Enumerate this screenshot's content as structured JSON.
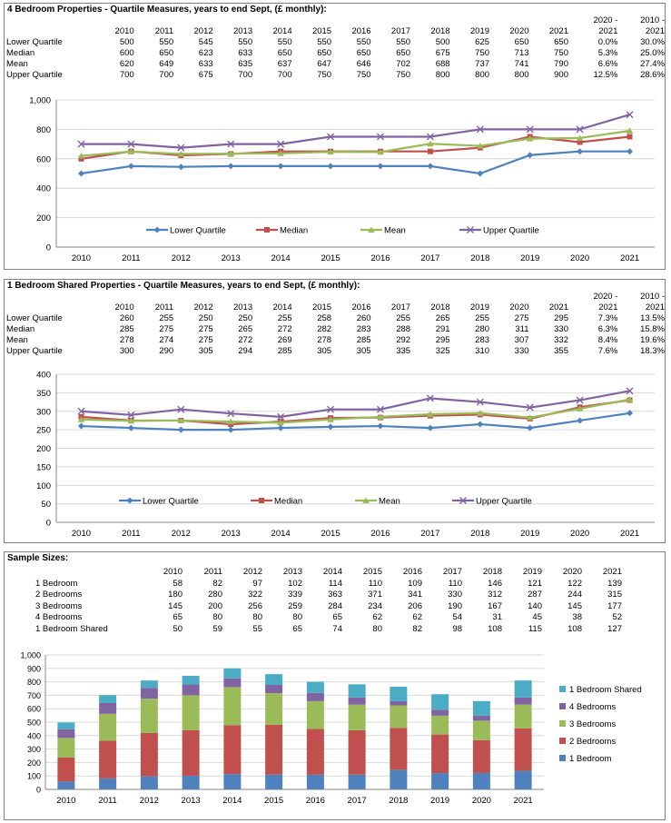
{
  "colors": {
    "lower": "#4f81bd",
    "median": "#c0504d",
    "mean": "#9bbb59",
    "upper": "#8064a2",
    "shared": "#4bacc6",
    "grid": "#d9d9d9",
    "axis": "#868686"
  },
  "years": [
    "2010",
    "2011",
    "2012",
    "2013",
    "2014",
    "2015",
    "2016",
    "2017",
    "2018",
    "2019",
    "2020",
    "2021"
  ],
  "change_headers": {
    "c1_line1": "2020 -",
    "c1_line2": "2021",
    "c2_line1": "2010 -",
    "c2_line2": "2021"
  },
  "panel1": {
    "title": "4 Bedroom Properties - Quartile Measures, years to end Sept, (£ monthly):",
    "rows": [
      {
        "label": "Lower Quartile",
        "values": [
          "500",
          "550",
          "545",
          "550",
          "550",
          "550",
          "550",
          "550",
          "500",
          "625",
          "650",
          "650"
        ],
        "c1": "0.0%",
        "c2": "30.0%"
      },
      {
        "label": "Median",
        "values": [
          "600",
          "650",
          "623",
          "633",
          "650",
          "650",
          "650",
          "650",
          "675",
          "750",
          "713",
          "750"
        ],
        "c1": "5.3%",
        "c2": "25.0%"
      },
      {
        "label": "Mean",
        "values": [
          "620",
          "649",
          "633",
          "635",
          "637",
          "647",
          "646",
          "702",
          "688",
          "737",
          "741",
          "790"
        ],
        "c1": "6.6%",
        "c2": "27.4%"
      },
      {
        "label": "Upper Quartile",
        "values": [
          "700",
          "700",
          "675",
          "700",
          "700",
          "750",
          "750",
          "750",
          "800",
          "800",
          "800",
          "900"
        ],
        "c1": "12.5%",
        "c2": "28.6%"
      }
    ]
  },
  "panel2": {
    "title": "1 Bedroom Shared Properties - Quartile Measures, years to end Sept, (£ monthly):",
    "rows": [
      {
        "label": "Lower Quartile",
        "values": [
          "260",
          "255",
          "250",
          "250",
          "255",
          "258",
          "260",
          "255",
          "265",
          "255",
          "275",
          "295"
        ],
        "c1": "7.3%",
        "c2": "13.5%"
      },
      {
        "label": "Median",
        "values": [
          "285",
          "275",
          "275",
          "265",
          "272",
          "282",
          "283",
          "288",
          "291",
          "280",
          "311",
          "330"
        ],
        "c1": "6.3%",
        "c2": "15.8%"
      },
      {
        "label": "Mean",
        "values": [
          "278",
          "274",
          "275",
          "272",
          "269",
          "278",
          "285",
          "292",
          "295",
          "283",
          "307",
          "332"
        ],
        "c1": "8.4%",
        "c2": "19.6%"
      },
      {
        "label": "Upper Quartile",
        "values": [
          "300",
          "290",
          "305",
          "294",
          "285",
          "305",
          "305",
          "335",
          "325",
          "310",
          "330",
          "355"
        ],
        "c1": "7.6%",
        "c2": "18.3%"
      }
    ]
  },
  "panel3": {
    "title": "Sample Sizes:",
    "rows": [
      {
        "label": "1 Bedroom",
        "values": [
          "58",
          "82",
          "97",
          "102",
          "114",
          "110",
          "109",
          "110",
          "146",
          "121",
          "122",
          "139"
        ]
      },
      {
        "label": "2 Bedrooms",
        "values": [
          "180",
          "280",
          "322",
          "339",
          "363",
          "371",
          "341",
          "330",
          "312",
          "287",
          "244",
          "315"
        ]
      },
      {
        "label": "3 Bedrooms",
        "values": [
          "145",
          "200",
          "256",
          "259",
          "284",
          "234",
          "206",
          "190",
          "167",
          "140",
          "145",
          "177"
        ]
      },
      {
        "label": "4 Bedrooms",
        "values": [
          "65",
          "80",
          "80",
          "80",
          "65",
          "62",
          "62",
          "54",
          "31",
          "45",
          "38",
          "52"
        ]
      },
      {
        "label": "1 Bedroom Shared",
        "values": [
          "50",
          "59",
          "55",
          "65",
          "74",
          "80",
          "82",
          "98",
          "108",
          "115",
          "108",
          "127"
        ]
      }
    ]
  },
  "chart_data": [
    {
      "type": "line",
      "x": [
        "2010",
        "2011",
        "2012",
        "2013",
        "2014",
        "2015",
        "2016",
        "2017",
        "2018",
        "2019",
        "2020",
        "2021"
      ],
      "ylim": [
        0,
        1000
      ],
      "yticks": [
        "0",
        "200",
        "400",
        "600",
        "800",
        "1,000"
      ],
      "grid": true,
      "legend": "bottom",
      "series": [
        {
          "name": "Lower Quartile",
          "values": [
            500,
            550,
            545,
            550,
            550,
            550,
            550,
            550,
            500,
            625,
            650,
            650
          ]
        },
        {
          "name": "Median",
          "values": [
            600,
            650,
            623,
            633,
            650,
            650,
            650,
            650,
            675,
            750,
            713,
            750
          ]
        },
        {
          "name": "Mean",
          "values": [
            620,
            649,
            633,
            635,
            637,
            647,
            646,
            702,
            688,
            737,
            741,
            790
          ]
        },
        {
          "name": "Upper Quartile",
          "values": [
            700,
            700,
            675,
            700,
            700,
            750,
            750,
            750,
            800,
            800,
            800,
            900
          ]
        }
      ]
    },
    {
      "type": "line",
      "x": [
        "2010",
        "2011",
        "2012",
        "2013",
        "2014",
        "2015",
        "2016",
        "2017",
        "2018",
        "2019",
        "2020",
        "2021"
      ],
      "ylim": [
        0,
        400
      ],
      "yticks": [
        "0",
        "50",
        "100",
        "150",
        "200",
        "250",
        "300",
        "350",
        "400"
      ],
      "grid": true,
      "legend": "bottom",
      "series": [
        {
          "name": "Lower Quartile",
          "values": [
            260,
            255,
            250,
            250,
            255,
            258,
            260,
            255,
            265,
            255,
            275,
            295
          ]
        },
        {
          "name": "Median",
          "values": [
            285,
            275,
            275,
            265,
            272,
            282,
            283,
            288,
            291,
            280,
            311,
            330
          ]
        },
        {
          "name": "Mean",
          "values": [
            278,
            274,
            275,
            272,
            269,
            278,
            285,
            292,
            295,
            283,
            307,
            332
          ]
        },
        {
          "name": "Upper Quartile",
          "values": [
            300,
            290,
            305,
            294,
            285,
            305,
            305,
            335,
            325,
            310,
            330,
            355
          ]
        }
      ]
    },
    {
      "type": "bar",
      "stacked": true,
      "categories": [
        "2010",
        "2011",
        "2012",
        "2013",
        "2014",
        "2015",
        "2016",
        "2017",
        "2018",
        "2019",
        "2020",
        "2021"
      ],
      "ylim": [
        0,
        1000
      ],
      "yticks": [
        "0",
        "100",
        "200",
        "300",
        "400",
        "500",
        "600",
        "700",
        "800",
        "900",
        "1,000"
      ],
      "grid": true,
      "legend": "right",
      "series": [
        {
          "name": "1 Bedroom",
          "values": [
            58,
            82,
            97,
            102,
            114,
            110,
            109,
            110,
            146,
            121,
            122,
            139
          ]
        },
        {
          "name": "2 Bedrooms",
          "values": [
            180,
            280,
            322,
            339,
            363,
            371,
            341,
            330,
            312,
            287,
            244,
            315
          ]
        },
        {
          "name": "3 Bedrooms",
          "values": [
            145,
            200,
            256,
            259,
            284,
            234,
            206,
            190,
            167,
            140,
            145,
            177
          ]
        },
        {
          "name": "4 Bedrooms",
          "values": [
            65,
            80,
            80,
            80,
            65,
            62,
            62,
            54,
            31,
            45,
            38,
            52
          ]
        },
        {
          "name": "1 Bedroom Shared",
          "values": [
            50,
            59,
            55,
            65,
            74,
            80,
            82,
            98,
            108,
            115,
            108,
            127
          ]
        }
      ]
    }
  ]
}
